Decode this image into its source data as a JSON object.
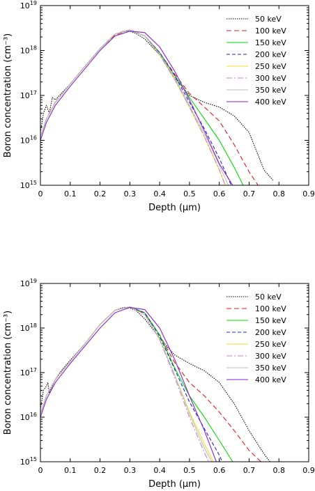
{
  "chart_data": [
    {
      "type": "line",
      "title": "",
      "xlabel": "Depth (μm)",
      "ylabel": "Boron concentration (cm⁻³)",
      "xlim": [
        0,
        0.9
      ],
      "ylim": [
        1000000000000000.0,
        1e+19
      ],
      "yscale": "log",
      "xticks": [
        "0",
        "0.1",
        "0.2",
        "0.3",
        "0.4",
        "0.5",
        "0.6",
        "0.7",
        "0.8",
        "0.9"
      ],
      "yticks": [
        "10^15",
        "10^16",
        "10^17",
        "10^18",
        "10^19"
      ],
      "grid": false,
      "legend_position": "top-right",
      "series": [
        {
          "name": "50 keV",
          "color": "#000000",
          "dash": "1.5,1.5",
          "x": [
            0,
            0.01,
            0.02,
            0.03,
            0.04,
            0.05,
            0.07,
            0.1,
            0.15,
            0.2,
            0.25,
            0.28,
            0.3,
            0.32,
            0.35,
            0.4,
            0.45,
            0.5,
            0.55,
            0.6,
            0.65,
            0.7,
            0.75,
            0.78
          ],
          "y": [
            1.5e+16,
            4e+16,
            6e+16,
            4e+16,
            9e+16,
            8e+16,
            1.1e+17,
            1.8e+17,
            4.5e+17,
            1.1e+18,
            2.3e+18,
            2.7e+18,
            2.7e+18,
            2.4e+18,
            1.8e+18,
            8e+17,
            2.5e+17,
            1e+17,
            7e+16,
            5.5e+16,
            3.5e+16,
            1.5e+16,
            2200000000000000.0,
            1300000000000000.0
          ]
        },
        {
          "name": "100 keV",
          "color": "#e41a1c",
          "dash": "7,4",
          "x": [
            0,
            0.02,
            0.05,
            0.1,
            0.15,
            0.2,
            0.25,
            0.3,
            0.35,
            0.4,
            0.45,
            0.5,
            0.55,
            0.6,
            0.65,
            0.7,
            0.73
          ],
          "y": [
            1.2e+16,
            3e+16,
            7e+16,
            1.8e+17,
            4.5e+17,
            1.1e+18,
            2.2e+18,
            2.9e+18,
            2.1e+18,
            9e+17,
            3e+17,
            1.1e+17,
            5.5e+16,
            2.7e+16,
            8000000000000000.0,
            2000000000000000.0,
            1000000000000000.0
          ]
        },
        {
          "name": "150 keV",
          "color": "#00dd00",
          "dash": "",
          "x": [
            0,
            0.02,
            0.05,
            0.1,
            0.15,
            0.2,
            0.25,
            0.3,
            0.35,
            0.4,
            0.45,
            0.5,
            0.55,
            0.6,
            0.65,
            0.68
          ],
          "y": [
            1.2e+16,
            3e+16,
            7e+16,
            1.8e+17,
            4.5e+17,
            1.1e+18,
            2.3e+18,
            2.9e+18,
            2.1e+18,
            9e+17,
            2.8e+17,
            9e+16,
            3e+16,
            1e+16,
            2500000000000000.0,
            1000000000000000.0
          ]
        },
        {
          "name": "200 keV",
          "color": "#1f1fcc",
          "dash": "5,3",
          "x": [
            0,
            0.02,
            0.05,
            0.1,
            0.15,
            0.2,
            0.25,
            0.3,
            0.35,
            0.4,
            0.45,
            0.5,
            0.55,
            0.6,
            0.64
          ],
          "y": [
            1.2e+16,
            3e+16,
            7e+16,
            1.8e+17,
            4.5e+17,
            1.1e+18,
            2.3e+18,
            2.9e+18,
            2.1e+18,
            9e+17,
            2.8e+17,
            7e+16,
            1.8e+16,
            4000000000000000.0,
            1000000000000000.0
          ]
        },
        {
          "name": "250 keV",
          "color": "#f0e020",
          "dash": "",
          "x": [
            0,
            0.02,
            0.05,
            0.1,
            0.15,
            0.2,
            0.25,
            0.3,
            0.35,
            0.4,
            0.45,
            0.5,
            0.55,
            0.6,
            0.62
          ],
          "y": [
            1.2e+16,
            3e+16,
            7e+16,
            1.8e+17,
            4.5e+17,
            1.1e+18,
            2.3e+18,
            2.9e+18,
            2.1e+18,
            8e+17,
            2.3e+17,
            5.5e+16,
            1.2e+16,
            2200000000000000.0,
            1000000000000000.0
          ]
        },
        {
          "name": "300 keV",
          "color": "#c080c0",
          "dash": "8,3,2,3",
          "x": [
            0,
            0.02,
            0.05,
            0.1,
            0.15,
            0.2,
            0.25,
            0.3,
            0.35,
            0.4,
            0.45,
            0.5,
            0.55,
            0.6,
            0.62
          ],
          "y": [
            1.2e+16,
            3e+16,
            7e+16,
            1.8e+17,
            4.5e+17,
            1.1e+18,
            2.3e+18,
            2.9e+18,
            2.1e+18,
            8e+17,
            2.3e+17,
            5.5e+16,
            1.2e+16,
            2200000000000000.0,
            1000000000000000.0
          ]
        },
        {
          "name": "350 keV",
          "color": "#bbbbbb",
          "dash": "",
          "x": [
            0,
            0.02,
            0.05,
            0.1,
            0.15,
            0.2,
            0.25,
            0.3,
            0.35,
            0.4,
            0.45,
            0.5,
            0.55,
            0.6,
            0.63
          ],
          "y": [
            1.2e+16,
            3e+16,
            7e+16,
            1.8e+17,
            4.5e+17,
            1.1e+18,
            2.3e+18,
            2.9e+18,
            2.1e+18,
            8.5e+17,
            2.5e+17,
            6e+16,
            1.4e+16,
            2800000000000000.0,
            1000000000000000.0
          ]
        },
        {
          "name": "400 keV",
          "color": "#8822cc",
          "dash": "",
          "x": [
            0,
            0.02,
            0.05,
            0.1,
            0.15,
            0.2,
            0.25,
            0.3,
            0.35,
            0.4,
            0.45,
            0.5,
            0.55,
            0.6,
            0.645
          ],
          "y": [
            1e+16,
            2.5e+16,
            6e+16,
            1.6e+17,
            4e+17,
            1e+18,
            2.1e+18,
            2.7e+18,
            2.5e+18,
            1.2e+18,
            3.5e+17,
            8e+16,
            1.6e+16,
            3000000000000000.0,
            1000000000000000.0
          ]
        }
      ]
    },
    {
      "type": "line",
      "title": "",
      "xlabel": "Depth (μm)",
      "ylabel": "Boron concentration (cm⁻³)",
      "xlim": [
        0,
        0.9
      ],
      "ylim": [
        1000000000000000.0,
        1e+19
      ],
      "yscale": "log",
      "xticks": [
        "0",
        "0.1",
        "0.2",
        "0.3",
        "0.4",
        "0.5",
        "0.6",
        "0.7",
        "0.8",
        "0.9"
      ],
      "yticks": [
        "10^15",
        "10^16",
        "10^17",
        "10^18",
        "10^19"
      ],
      "grid": false,
      "legend_position": "top-right",
      "series": [
        {
          "name": "50 keV",
          "color": "#000000",
          "dash": "1.5,1.5",
          "x": [
            0,
            0.01,
            0.02,
            0.025,
            0.03,
            0.05,
            0.07,
            0.1,
            0.15,
            0.2,
            0.25,
            0.28,
            0.3,
            0.32,
            0.35,
            0.4,
            0.45,
            0.5,
            0.55,
            0.6,
            0.65,
            0.7,
            0.75,
            0.77
          ],
          "y": [
            1.5e+16,
            4e+16,
            5e+16,
            6e+16,
            3.5e+16,
            7e+16,
            1.1e+17,
            1.9e+17,
            4.5e+17,
            1.2e+18,
            2.5e+18,
            2.9e+18,
            2.8e+18,
            2.5e+18,
            1.6e+18,
            6e+17,
            2.5e+17,
            1.6e+17,
            1.1e+17,
            6e+16,
            2e+16,
            5000000000000000.0,
            1500000000000000.0,
            1000000000000000.0
          ]
        },
        {
          "name": "100 keV",
          "color": "#e41a1c",
          "dash": "7,4",
          "x": [
            0,
            0.02,
            0.05,
            0.1,
            0.15,
            0.2,
            0.25,
            0.3,
            0.35,
            0.4,
            0.45,
            0.5,
            0.55,
            0.6,
            0.65,
            0.7,
            0.74
          ],
          "y": [
            1.2e+16,
            3e+16,
            7e+16,
            1.8e+17,
            4.5e+17,
            1.2e+18,
            2.5e+18,
            3e+18,
            2.1e+18,
            7e+17,
            1.7e+17,
            6e+16,
            3e+16,
            1.3e+16,
            5000000000000000.0,
            1800000000000000.0,
            1000000000000000.0
          ]
        },
        {
          "name": "150 keV",
          "color": "#00dd00",
          "dash": "",
          "x": [
            0,
            0.02,
            0.05,
            0.1,
            0.15,
            0.2,
            0.25,
            0.3,
            0.35,
            0.4,
            0.45,
            0.5,
            0.55,
            0.6,
            0.645
          ],
          "y": [
            1.2e+16,
            3e+16,
            7e+16,
            1.8e+17,
            4.5e+17,
            1.2e+18,
            2.5e+18,
            3e+18,
            2.2e+18,
            7e+17,
            1.3e+17,
            3e+16,
            1e+16,
            3000000000000000.0,
            1000000000000000.0
          ]
        },
        {
          "name": "200 keV",
          "color": "#1f1fcc",
          "dash": "5,3",
          "x": [
            0,
            0.02,
            0.05,
            0.1,
            0.15,
            0.2,
            0.25,
            0.3,
            0.35,
            0.4,
            0.45,
            0.5,
            0.55,
            0.6,
            0.61
          ],
          "y": [
            1.2e+16,
            3e+16,
            7e+16,
            1.8e+17,
            4.5e+17,
            1.2e+18,
            2.5e+18,
            3e+18,
            2.2e+18,
            6.5e+17,
            1.2e+17,
            2.2e+16,
            5500000000000000.0,
            1400000000000000.0,
            1000000000000000.0
          ]
        },
        {
          "name": "250 keV",
          "color": "#f0e020",
          "dash": "",
          "x": [
            0,
            0.02,
            0.05,
            0.1,
            0.15,
            0.2,
            0.25,
            0.3,
            0.35,
            0.4,
            0.45,
            0.5,
            0.55,
            0.58
          ],
          "y": [
            1.2e+16,
            3e+16,
            7e+16,
            1.8e+17,
            4.5e+17,
            1.2e+18,
            2.5e+18,
            3e+18,
            2e+18,
            5.5e+17,
            9e+16,
            1.3e+16,
            2500000000000000.0,
            1000000000000000.0
          ]
        },
        {
          "name": "300 keV",
          "color": "#c080c0",
          "dash": "8,3,2,3",
          "x": [
            0,
            0.02,
            0.05,
            0.1,
            0.15,
            0.2,
            0.25,
            0.3,
            0.35,
            0.4,
            0.45,
            0.5,
            0.55,
            0.565
          ],
          "y": [
            1.2e+16,
            3e+16,
            7e+16,
            1.8e+17,
            4.5e+17,
            1.2e+18,
            2.5e+18,
            3e+18,
            2e+18,
            5.5e+17,
            8e+16,
            1e+16,
            1600000000000000.0,
            1000000000000000.0
          ]
        },
        {
          "name": "350 keV",
          "color": "#bbbbbb",
          "dash": "",
          "x": [
            0,
            0.02,
            0.05,
            0.1,
            0.15,
            0.2,
            0.25,
            0.3,
            0.35,
            0.4,
            0.45,
            0.5,
            0.55,
            0.575
          ],
          "y": [
            1.2e+16,
            3e+16,
            7e+16,
            1.8e+17,
            4.5e+17,
            1.2e+18,
            2.5e+18,
            3e+18,
            2e+18,
            5.8e+17,
            9e+16,
            1.2e+16,
            2000000000000000.0,
            1000000000000000.0
          ]
        },
        {
          "name": "400 keV",
          "color": "#8822cc",
          "dash": "",
          "x": [
            0,
            0.02,
            0.05,
            0.1,
            0.15,
            0.2,
            0.25,
            0.3,
            0.35,
            0.4,
            0.45,
            0.5,
            0.55,
            0.59
          ],
          "y": [
            1e+16,
            2.5e+16,
            6e+16,
            1.6e+17,
            4e+17,
            1e+18,
            2.2e+18,
            2.9e+18,
            2.6e+18,
            1e+18,
            2e+17,
            3e+16,
            5000000000000000.0,
            1000000000000000.0
          ]
        }
      ]
    }
  ]
}
